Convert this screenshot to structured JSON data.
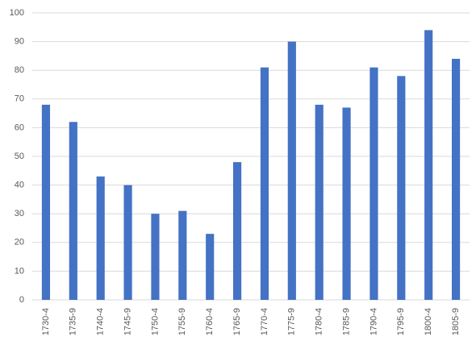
{
  "chart_data": {
    "type": "bar",
    "categories": [
      "1730-4",
      "1735-9",
      "1740-4",
      "1745-9",
      "1750-4",
      "1755-9",
      "1760-4",
      "1765-9",
      "1770-4",
      "1775-9",
      "1780-4",
      "1785-9",
      "1790-4",
      "1795-9",
      "1800-4",
      "1805-9"
    ],
    "values": [
      68,
      62,
      43,
      40,
      30,
      31,
      23,
      48,
      81,
      90,
      68,
      67,
      81,
      78,
      94,
      84
    ],
    "color": "#4472c4",
    "ylim": [
      0,
      100
    ],
    "yticks": [
      0,
      10,
      20,
      30,
      40,
      50,
      60,
      70,
      80,
      90,
      100
    ],
    "grid": true
  }
}
